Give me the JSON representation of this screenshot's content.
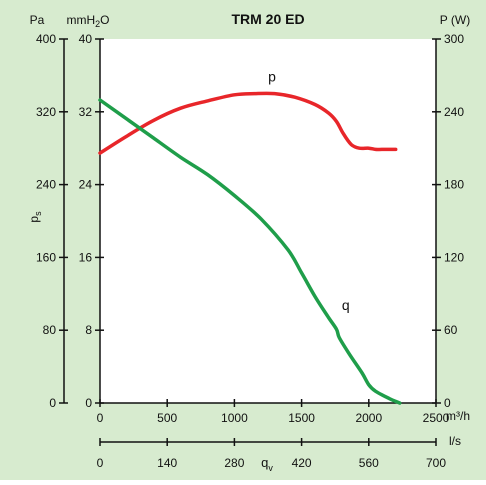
{
  "chart_data": {
    "type": "line",
    "title": "TRM 20 ED",
    "background_color": "#d7ebcf",
    "plot_background_color": "#ffffff",
    "x_axis": {
      "label": "m³/h",
      "range": [
        0,
        2500
      ],
      "ticks": [
        0,
        500,
        1000,
        1500,
        2000,
        2500
      ]
    },
    "x_axis_secondary": {
      "label": "l/s",
      "range": [
        0,
        700
      ],
      "ticks": [
        0,
        140,
        280,
        420,
        560,
        700
      ],
      "name": "q",
      "name_subscript": "v"
    },
    "y_axis_left": {
      "unit": "Pa",
      "range": [
        0,
        400
      ],
      "ticks": [
        0,
        80,
        160,
        240,
        320,
        400
      ],
      "name": "p",
      "name_subscript": "s"
    },
    "y_axis_left_secondary": {
      "unit_base": "mmH",
      "unit_subscript": "2",
      "unit_tail": "O",
      "range": [
        0,
        40
      ],
      "ticks": [
        0,
        8,
        16,
        24,
        32,
        40
      ]
    },
    "y_axis_right": {
      "unit": "P (W)",
      "range": [
        0,
        300
      ],
      "ticks": [
        0,
        60,
        120,
        180,
        240,
        300
      ]
    },
    "series": [
      {
        "name": "p",
        "color": "#e8262a",
        "axis": "right",
        "x": [
          0,
          200,
          400,
          600,
          800,
          1000,
          1150,
          1300,
          1450,
          1600,
          1700,
          1760,
          1810,
          1870,
          1930,
          2000,
          2050,
          2100,
          2200
        ],
        "y": [
          206,
          220,
          233,
          243,
          249,
          254,
          255,
          255,
          252,
          246,
          239,
          232,
          222,
          213,
          210,
          210,
          209,
          209,
          209
        ]
      },
      {
        "name": "q",
        "color": "#1f9e4a",
        "axis": "left",
        "x": [
          0,
          200,
          400,
          600,
          800,
          1000,
          1200,
          1400,
          1500,
          1600,
          1700,
          1760,
          1780,
          1850,
          1950,
          2000,
          2050,
          2150,
          2230
        ],
        "y": [
          333,
          312,
          291,
          270,
          251,
          228,
          202,
          168,
          143,
          117,
          94,
          81,
          72,
          55,
          33,
          20,
          13,
          5,
          0
        ]
      }
    ]
  }
}
